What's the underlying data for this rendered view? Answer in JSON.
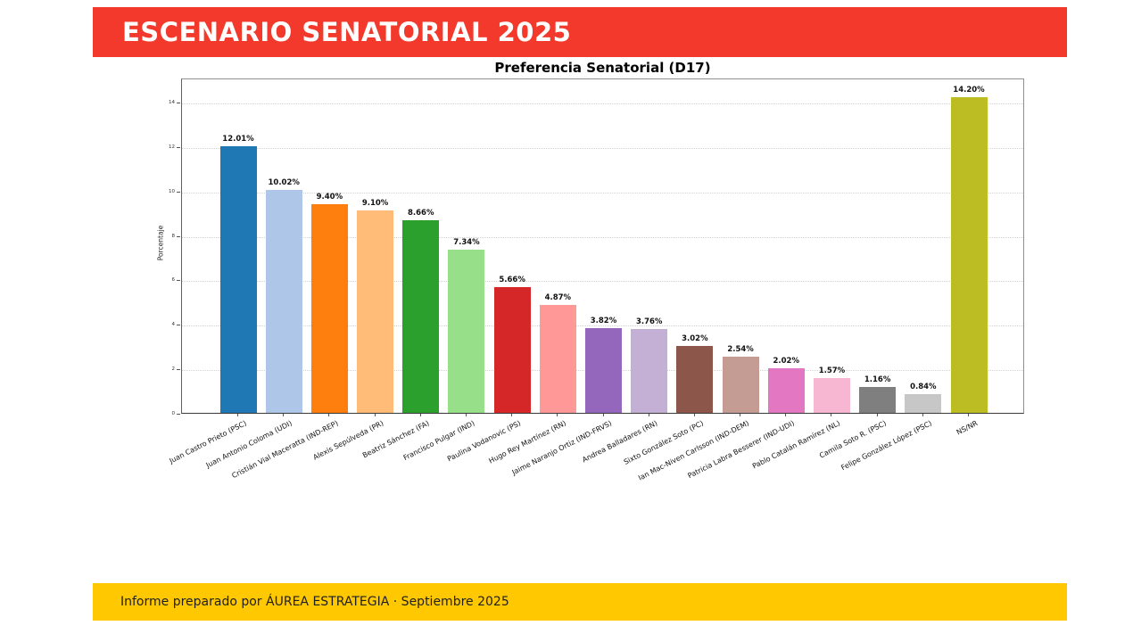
{
  "header": {
    "title": "ESCENARIO SENATORIAL 2025",
    "bg_color": "#F2392B",
    "text_color": "#FFFFFF"
  },
  "footer": {
    "text": "Informe preparado por ÁUREA ESTRATEGIA · Septiembre 2025",
    "bg_color": "#FFC800",
    "text_color": "#1F1F1F"
  },
  "chart_data": {
    "type": "bar",
    "title": "Preferencia Senatorial (D17)",
    "xlabel": "",
    "ylabel": "Porcentaje",
    "ylim": [
      0,
      15.08
    ],
    "yticks": [
      0,
      2,
      4,
      6,
      8,
      10,
      12,
      14
    ],
    "grid": "horizontal-dotted",
    "legend": "none",
    "value_label_suffix": "%",
    "categories": [
      "Juan Castro Prieto (PSC)",
      "Juan Antonio Coloma (UDI)",
      "Cristián Vial Maceratta (IND-REP)",
      "Alexis Sepúlveda (PR)",
      "Beatriz Sánchez (FA)",
      "Francisco Pulgar (IND)",
      "Paulina Vodanovic (PS)",
      "Hugo Rey Martínez (RN)",
      "Jaime Naranjo Ortiz (IND-FRVS)",
      "Andrea Balladares (RN)",
      "Sixto González Soto (PC)",
      "Ian Mac-Niven Carlsson (IND-DEM)",
      "Patricia Labra Besserer (IND-UDI)",
      "Pablo Catalán Ramírez (NL)",
      "Camila Soto R. (PSC)",
      "Felipe González López (PSC)",
      "NS/NR"
    ],
    "values": [
      12.01,
      10.02,
      9.4,
      9.1,
      8.66,
      7.34,
      5.66,
      4.87,
      3.82,
      3.76,
      3.02,
      2.54,
      2.02,
      1.57,
      1.16,
      0.84,
      14.2
    ],
    "value_labels": [
      "12.01%",
      "10.02%",
      "9.40%",
      "9.10%",
      "8.66%",
      "7.34%",
      "5.66%",
      "4.87%",
      "3.82%",
      "3.76%",
      "3.02%",
      "2.54%",
      "2.02%",
      "1.57%",
      "1.16%",
      "0.84%",
      "14.20%"
    ],
    "bar_colors": [
      "#1F77B4",
      "#AEC7E8",
      "#FF7F0E",
      "#FFBB78",
      "#2CA02C",
      "#98DF8A",
      "#D62728",
      "#FF9896",
      "#9467BD",
      "#C5B0D5",
      "#8C564B",
      "#C49C94",
      "#E377C2",
      "#F7B6D2",
      "#7F7F7F",
      "#C7C7C7",
      "#BCBD22"
    ]
  }
}
